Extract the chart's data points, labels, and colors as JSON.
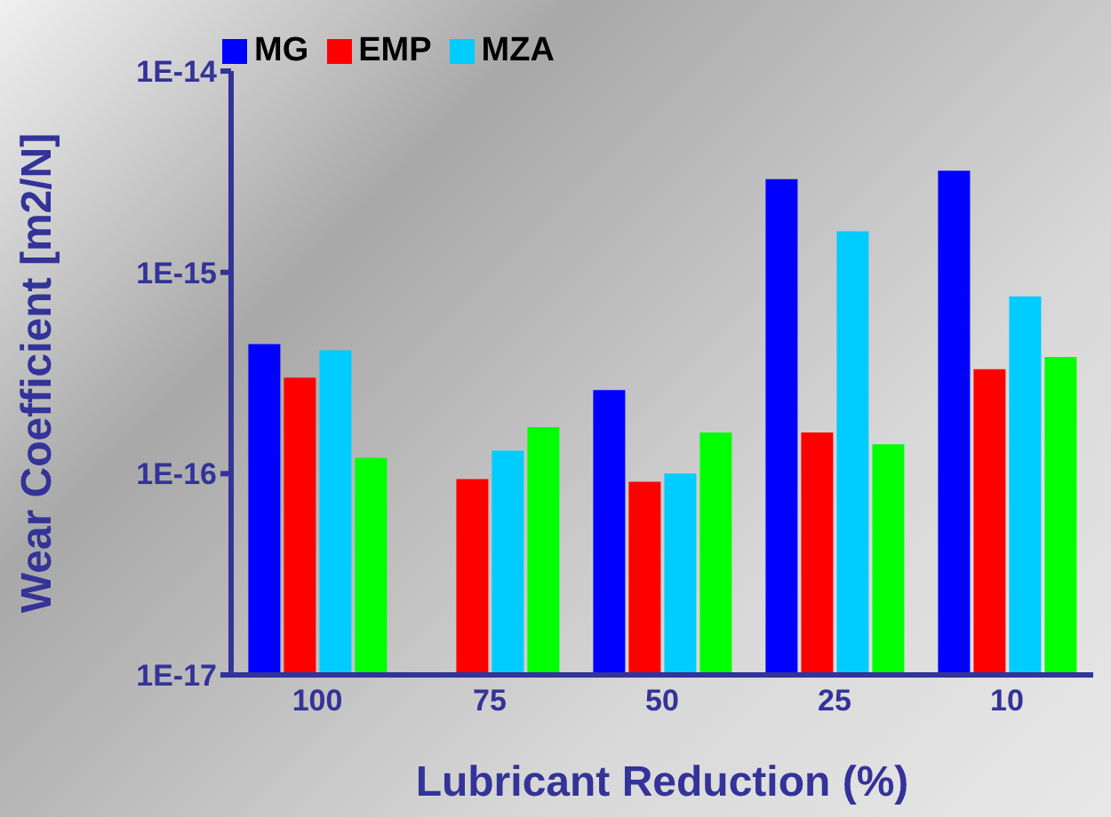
{
  "chart_data": {
    "type": "bar",
    "xlabel": "Lubricant Reduction (%)",
    "ylabel": "Wear Coefficient [m2/N]",
    "categories": [
      "100",
      "75",
      "50",
      "25",
      "10"
    ],
    "series": [
      {
        "name": "MG",
        "color": "#0000ff",
        "values": [
          4.4e-16,
          null,
          2.6e-16,
          2.9e-15,
          3.2e-15
        ]
      },
      {
        "name": "EMP",
        "color": "#ff0000",
        "values": [
          3e-16,
          9.4e-17,
          9.1e-17,
          1.6e-16,
          3.3e-16
        ]
      },
      {
        "name": "MZA",
        "color": "#00ccff",
        "values": [
          4.1e-16,
          1.3e-16,
          1e-16,
          1.6e-15,
          7.6e-16
        ]
      },
      {
        "color": "#00ff00",
        "values": [
          1.2e-16,
          1.7e-16,
          1.6e-16,
          1.4e-16,
          3.8e-16
        ]
      }
    ],
    "log": true,
    "ylim": [
      1e-17,
      1e-14
    ],
    "yticks": [
      {
        "value": 1e-17,
        "label": "1E-17"
      },
      {
        "value": 1e-16,
        "label": "1E-16"
      },
      {
        "value": 1e-15,
        "label": "1E-15"
      },
      {
        "value": 1e-14,
        "label": "1E-14"
      }
    ],
    "grid": false,
    "legend": "top left"
  }
}
